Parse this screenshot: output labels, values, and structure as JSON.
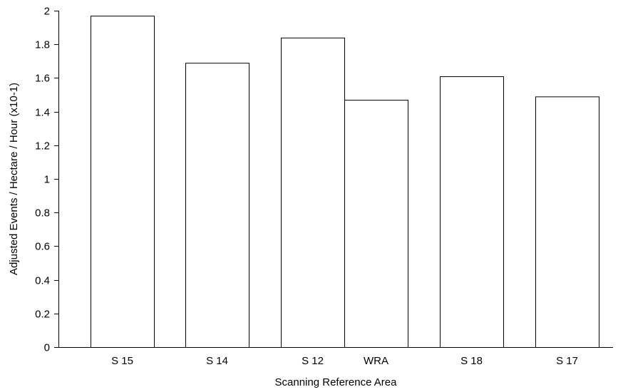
{
  "chart_data": {
    "type": "bar",
    "title": "",
    "xlabel": "Scanning Reference Area",
    "ylabel": "Adjusted Events / Hectare / Hour (x10-1)",
    "categories": [
      "S 15",
      "S 14",
      "S 12",
      "WRA",
      "S 18",
      "S 17"
    ],
    "values": [
      1.97,
      1.69,
      1.84,
      1.47,
      1.61,
      1.49
    ],
    "ylim": [
      0,
      2
    ],
    "yticks": [
      "0",
      "0.2",
      "0.4",
      "0.6",
      "0.8",
      "1",
      "1.2",
      "1.4",
      "1.6",
      "1.8",
      "2"
    ],
    "grid": false,
    "legend": "none",
    "colors": {
      "bar_fill": "#ffffff",
      "bar_stroke": "#000000",
      "axis": "#000000"
    }
  }
}
